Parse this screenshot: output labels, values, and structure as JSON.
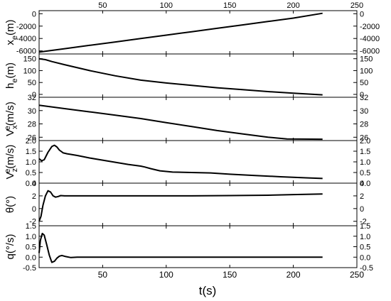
{
  "chart_data": [
    {
      "type": "line",
      "ylabel": "x_e(m)",
      "ylabel_parts": [
        {
          "t": "x",
          "pos": "base"
        },
        {
          "t": "e",
          "pos": "sub"
        },
        {
          "t": "(m)",
          "pos": "base"
        }
      ],
      "xlim": [
        0,
        250
      ],
      "ylim": [
        -6500,
        500
      ],
      "yticks": [
        0,
        -2000,
        -4000,
        -6000
      ],
      "ytick_labels": [
        "0",
        "-2000",
        "-4000",
        "-6000"
      ],
      "x": [
        0,
        20,
        40,
        60,
        80,
        100,
        120,
        140,
        160,
        180,
        200,
        223
      ],
      "y": [
        -6200,
        -5650,
        -5100,
        -4560,
        -4010,
        -3460,
        -2910,
        -2360,
        -1810,
        -1260,
        -710,
        80
      ]
    },
    {
      "type": "line",
      "ylabel": "h_e(m)",
      "ylabel_parts": [
        {
          "t": "h",
          "pos": "base"
        },
        {
          "t": "e",
          "pos": "sub"
        },
        {
          "t": "(m)",
          "pos": "base"
        }
      ],
      "xlim": [
        0,
        250
      ],
      "ylim": [
        -12,
        170
      ],
      "yticks": [
        150,
        100,
        50,
        0
      ],
      "ytick_labels": [
        "150",
        "100",
        "50",
        "0"
      ],
      "x": [
        0,
        5,
        10,
        20,
        40,
        60,
        80,
        100,
        120,
        140,
        160,
        180,
        200,
        223
      ],
      "y": [
        150,
        146,
        138,
        125,
        100,
        78,
        60,
        48,
        38,
        28,
        20,
        12,
        5,
        -2
      ]
    },
    {
      "type": "line",
      "ylabel": "V_x^e(m/s)",
      "ylabel_parts": [
        {
          "t": "V",
          "pos": "base"
        },
        {
          "t": "x",
          "pos": "sub"
        },
        {
          "t": "e",
          "pos": "sup"
        },
        {
          "t": "(m/s)",
          "pos": "base"
        }
      ],
      "xlim": [
        0,
        250
      ],
      "ylim": [
        25.5,
        32
      ],
      "yticks": [
        32,
        30,
        28,
        26
      ],
      "ytick_labels": [
        "32",
        "30",
        "28",
        "26"
      ],
      "x": [
        0,
        20,
        40,
        60,
        80,
        100,
        120,
        140,
        160,
        180,
        195,
        205,
        223
      ],
      "y": [
        30.8,
        30.3,
        29.8,
        29.3,
        28.8,
        28.2,
        27.6,
        27.0,
        26.5,
        26.0,
        25.75,
        25.72,
        25.7
      ]
    },
    {
      "type": "line",
      "ylabel": "V_z^e(m/s)",
      "ylabel_parts": [
        {
          "t": "V",
          "pos": "base"
        },
        {
          "t": "z",
          "pos": "sub"
        },
        {
          "t": "e",
          "pos": "sup"
        },
        {
          "t": "(m/s)",
          "pos": "base"
        }
      ],
      "xlim": [
        0,
        250
      ],
      "ylim": [
        0,
        2.0
      ],
      "yticks": [
        2.0,
        1.5,
        1.0,
        0.5,
        0.0
      ],
      "ytick_labels": [
        "2.0",
        "1.5",
        "1.0",
        "0.5",
        "0.0"
      ],
      "x": [
        0,
        2,
        4,
        7,
        10,
        12,
        14,
        16,
        19,
        22,
        25,
        30,
        40,
        50,
        60,
        70,
        80,
        83,
        88,
        95,
        105,
        120,
        135,
        150,
        170,
        190,
        210,
        223
      ],
      "y": [
        1.15,
        1.05,
        1.1,
        1.45,
        1.72,
        1.78,
        1.7,
        1.55,
        1.42,
        1.38,
        1.35,
        1.3,
        1.18,
        1.08,
        0.98,
        0.88,
        0.8,
        0.76,
        0.68,
        0.58,
        0.52,
        0.5,
        0.48,
        0.42,
        0.36,
        0.3,
        0.25,
        0.22
      ]
    },
    {
      "type": "line",
      "ylabel": "θ(°)",
      "ylabel_parts": [
        {
          "t": "θ(°)",
          "pos": "base"
        }
      ],
      "xlim": [
        0,
        250
      ],
      "ylim": [
        -2.7,
        4
      ],
      "yticks": [
        4,
        2,
        0,
        -2
      ],
      "ytick_labels": [
        "4",
        "2",
        "0",
        "-2"
      ],
      "x": [
        0,
        1.5,
        3,
        5,
        7,
        9,
        11,
        13,
        15,
        17,
        20,
        25,
        40,
        80,
        120,
        150,
        180,
        200,
        223
      ],
      "y": [
        -2.0,
        -1.2,
        0.5,
        2.0,
        2.8,
        2.6,
        2.0,
        1.8,
        1.9,
        2.05,
        2.0,
        2.0,
        2.0,
        2.0,
        2.0,
        2.05,
        2.1,
        2.2,
        2.3
      ]
    },
    {
      "type": "line",
      "ylabel": "q(°/s)",
      "ylabel_parts": [
        {
          "t": "q(°/s)",
          "pos": "base"
        }
      ],
      "xlim": [
        0,
        250
      ],
      "ylim": [
        -0.5,
        1.5
      ],
      "yticks": [
        1.5,
        1.0,
        0.5,
        0.0,
        -0.5
      ],
      "ytick_labels": [
        "1.5",
        "1.0",
        "0.5",
        "0.0",
        "-0.5"
      ],
      "x": [
        0,
        1,
        2.5,
        4,
        6,
        8,
        10,
        12,
        14,
        16,
        18,
        21,
        25,
        30,
        40,
        80,
        150,
        223
      ],
      "y": [
        0.2,
        0.8,
        1.13,
        1.05,
        0.6,
        0.1,
        -0.25,
        -0.2,
        -0.05,
        0.05,
        0.08,
        0.03,
        -0.02,
        0.0,
        0.0,
        0.0,
        0.0,
        0.0
      ]
    }
  ],
  "x_axis": {
    "label": "t(s)",
    "ticks": [
      50,
      100,
      150,
      200,
      250
    ],
    "tick_labels": [
      "50",
      "100",
      "150",
      "200",
      "250"
    ]
  },
  "colors": {
    "line": "#000000",
    "frame": "#000000"
  }
}
